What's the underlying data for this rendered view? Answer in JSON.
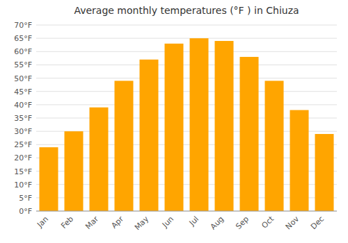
{
  "chart_data": {
    "type": "bar",
    "title": "Average monthly temperatures (°F ) in Chiuza",
    "categories": [
      "Jan",
      "Feb",
      "Mar",
      "Apr",
      "May",
      "Jun",
      "Jul",
      "Aug",
      "Sep",
      "Oct",
      "Nov",
      "Dec"
    ],
    "values": [
      24,
      30,
      39,
      49,
      57,
      63,
      65,
      64,
      58,
      49,
      38,
      29
    ],
    "color": "#FFA500",
    "ylim": [
      0,
      70
    ],
    "yticks": [
      {
        "value": 0,
        "label": "0°F"
      },
      {
        "value": 5,
        "label": "5°F"
      },
      {
        "value": 10,
        "label": "10°F"
      },
      {
        "value": 15,
        "label": "15°F"
      },
      {
        "value": 20,
        "label": "20°F"
      },
      {
        "value": 25,
        "label": "25°F"
      },
      {
        "value": 30,
        "label": "30°F"
      },
      {
        "value": 35,
        "label": "35°F"
      },
      {
        "value": 40,
        "label": "40°F"
      },
      {
        "value": 45,
        "label": "45°F"
      },
      {
        "value": 50,
        "label": "50°F"
      },
      {
        "value": 55,
        "label": "55°F"
      },
      {
        "value": 60,
        "label": "60°F"
      },
      {
        "value": 65,
        "label": "65°F"
      },
      {
        "value": 70,
        "label": "70°F"
      }
    ],
    "grid": true
  }
}
